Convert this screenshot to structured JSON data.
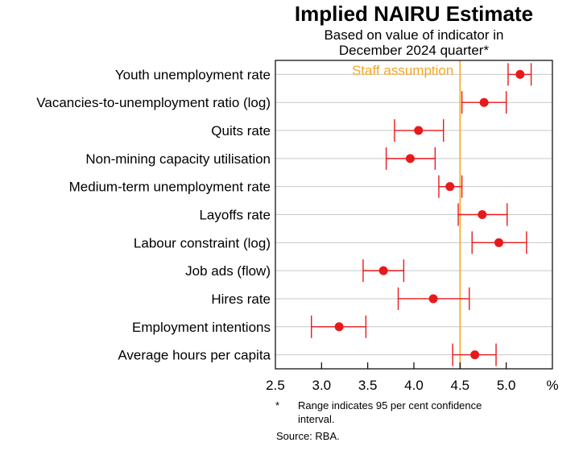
{
  "chart_data": {
    "type": "dot-errorbar",
    "title": "Implied NAIRU Estimate",
    "subtitle_lines": [
      "Based on value of indicator in",
      "December 2024 quarter*"
    ],
    "x_unit_label": "%",
    "xlim": [
      2.5,
      5.5
    ],
    "x_ticks": [
      "2.5",
      "3.0",
      "3.5",
      "4.0",
      "4.5",
      "5.0"
    ],
    "reference_line": {
      "label": "Staff assumption",
      "value": 4.5,
      "color": "#F5A623"
    },
    "point_color": "#E8191A",
    "errorbar_color": "#E8191A",
    "categories": [
      {
        "label": "Youth unemployment rate",
        "estimate": 5.15,
        "low": 5.02,
        "high": 5.27
      },
      {
        "label": "Vacancies-to-unemployment ratio (log)",
        "estimate": 4.76,
        "low": 4.52,
        "high": 5.0
      },
      {
        "label": "Quits rate",
        "estimate": 4.05,
        "low": 3.79,
        "high": 4.32
      },
      {
        "label": "Non-mining capacity utilisation",
        "estimate": 3.96,
        "low": 3.7,
        "high": 4.23
      },
      {
        "label": "Medium-term unemployment rate",
        "estimate": 4.39,
        "low": 4.27,
        "high": 4.52
      },
      {
        "label": "Layoffs rate",
        "estimate": 4.74,
        "low": 4.48,
        "high": 5.01
      },
      {
        "label": "Labour constraint (log)",
        "estimate": 4.92,
        "low": 4.63,
        "high": 5.22
      },
      {
        "label": "Job ads (flow)",
        "estimate": 3.67,
        "low": 3.45,
        "high": 3.89
      },
      {
        "label": "Hires rate",
        "estimate": 4.21,
        "low": 3.83,
        "high": 4.6
      },
      {
        "label": "Employment intentions",
        "estimate": 3.19,
        "low": 2.89,
        "high": 3.48
      },
      {
        "label": "Average hours per capita",
        "estimate": 4.66,
        "low": 4.42,
        "high": 4.89
      }
    ],
    "footnote_marker": "*",
    "footnote_lines": [
      "Range indicates 95 per cent confidence",
      "interval."
    ],
    "source": "Source:  RBA."
  }
}
